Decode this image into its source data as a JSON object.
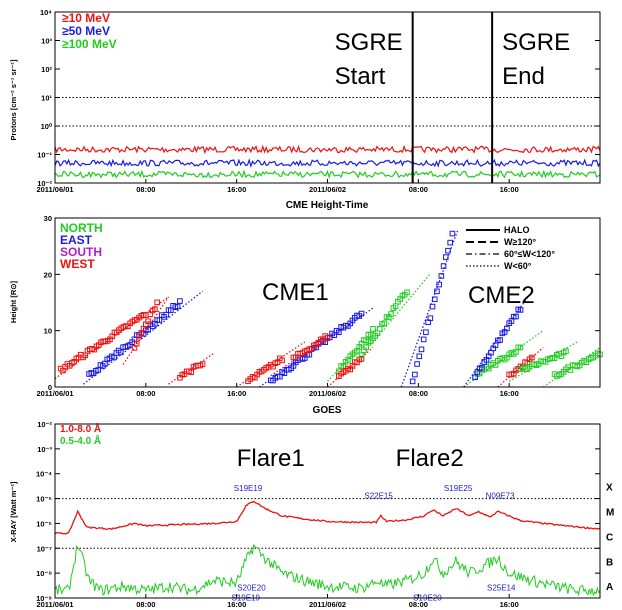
{
  "colors": {
    "red": "#ee1111",
    "blue": "#1a1ae6",
    "green": "#22cc22",
    "purple": "#b020c0",
    "annotation": "#2222cc"
  },
  "chart_data": [
    {
      "type": "line",
      "ylabel": "Protons [cm⁻² s⁻¹ sr⁻¹]",
      "yscale": "log",
      "ylim": [
        0.01,
        10000
      ],
      "x_ticks": [
        "2011/06/01",
        "08:00",
        "16:00",
        "2011/06/02",
        "08:00",
        "16:00"
      ],
      "y_ticks": [
        "10⁻²",
        "10⁻¹",
        "10⁰",
        "10¹",
        "10²",
        "10³",
        "10⁴"
      ],
      "legend": [
        "≥10 MeV",
        "≥50 MeV",
        "≥100 MeV"
      ],
      "reference_levels": [
        1,
        10
      ],
      "x_hours": [
        0,
        48
      ],
      "series": [
        {
          "name": "≥10 MeV",
          "level": 0.15
        },
        {
          "name": "≥50 MeV",
          "level": 0.05
        },
        {
          "name": "≥100 MeV",
          "level": 0.02
        }
      ],
      "markers": [
        {
          "label_1": "SGRE",
          "label_2": "Start",
          "hour": 31.5
        },
        {
          "label_1": "SGRE",
          "label_2": "End",
          "hour": 38.5
        }
      ]
    },
    {
      "type": "scatter",
      "title": "CME Height-Time",
      "ylabel": "Height [R⊙]",
      "ylim": [
        0,
        30
      ],
      "x_ticks": [
        "2011/06/01",
        "08:00",
        "16:00",
        "2011/06/02",
        "08:00",
        "16:00"
      ],
      "y_ticks": [
        "0",
        "10",
        "20",
        "30"
      ],
      "legend_directions": [
        "NORTH",
        "EAST",
        "SOUTH",
        "WEST"
      ],
      "legend_styles": [
        "HALO",
        "W≥120°",
        "60°≤W<120°",
        "W<60°"
      ],
      "labels": [
        "CME1",
        "CME2"
      ],
      "groups": [
        {
          "color": "red",
          "t0": 0.5,
          "t1": 8,
          "h0": 3,
          "h1": 13,
          "fit": [
            0,
            10,
            1.5,
            16
          ]
        },
        {
          "color": "blue",
          "t0": 3,
          "t1": 11,
          "h0": 2,
          "h1": 15,
          "fit": [
            2.5,
            13,
            0.5,
            17
          ]
        },
        {
          "color": "red",
          "t0": 7,
          "t1": 9,
          "h0": 7,
          "h1": 15,
          "fit": [
            6,
            10,
            4,
            16
          ]
        },
        {
          "color": "red",
          "t0": 11,
          "t1": 13,
          "h0": 2,
          "h1": 4,
          "fit": [
            10,
            14,
            0.5,
            6
          ]
        },
        {
          "color": "red",
          "t0": 17,
          "t1": 20,
          "h0": 1,
          "h1": 5,
          "fit": [
            16,
            22,
            0,
            8
          ]
        },
        {
          "color": "blue",
          "t0": 19,
          "t1": 27,
          "h0": 1,
          "h1": 13,
          "fit": [
            18,
            28,
            0,
            14
          ]
        },
        {
          "color": "red",
          "t0": 21,
          "t1": 24,
          "h0": 5,
          "h1": 9,
          "fit": [
            19,
            25,
            2,
            10
          ]
        },
        {
          "color": "green",
          "t0": 25,
          "t1": 28,
          "h0": 3,
          "h1": 10,
          "fit": [
            24,
            30,
            1,
            14
          ]
        },
        {
          "color": "red",
          "t0": 25,
          "t1": 27,
          "h0": 2,
          "h1": 5,
          "fit": [
            24,
            28,
            0,
            7
          ]
        },
        {
          "color": "green",
          "t0": 27,
          "t1": 31,
          "h0": 6,
          "h1": 17,
          "fit": [
            26,
            33,
            3,
            20
          ]
        },
        {
          "color": "blue",
          "t0": 31.5,
          "t1": 35,
          "h0": 1,
          "h1": 27,
          "fit": [
            30.5,
            35.5,
            0,
            28
          ]
        },
        {
          "color": "green",
          "t0": 37,
          "t1": 41,
          "h0": 2,
          "h1": 7,
          "fit": [
            36,
            43,
            0,
            10
          ]
        },
        {
          "color": "blue",
          "t0": 37,
          "t1": 41,
          "h0": 2,
          "h1": 14,
          "fit": [
            36,
            42,
            0,
            17
          ]
        },
        {
          "color": "red",
          "t0": 40,
          "t1": 42,
          "h0": 2,
          "h1": 5,
          "fit": [
            39,
            43,
            0,
            7
          ]
        },
        {
          "color": "green",
          "t0": 41,
          "t1": 45,
          "h0": 3,
          "h1": 6,
          "fit": [
            40,
            46,
            1,
            8
          ]
        },
        {
          "color": "green",
          "t0": 44,
          "t1": 48,
          "h0": 2,
          "h1": 6,
          "fit": [
            43,
            48,
            0,
            7
          ]
        }
      ]
    },
    {
      "type": "line",
      "title": "GOES",
      "ylabel": "X-RAY [Watt m⁻²]",
      "yscale": "log",
      "ylim": [
        1e-09,
        0.01
      ],
      "x_ticks": [
        "2011/06/01",
        "08:00",
        "16:00",
        "2011/06/02",
        "08:00",
        "16:00"
      ],
      "y_ticks": [
        "10⁻⁹",
        "10⁻⁸",
        "10⁻⁷",
        "10⁻⁶",
        "10⁻⁵",
        "10⁻⁴",
        "10⁻³",
        "10⁻²"
      ],
      "flare_classes": [
        "A",
        "B",
        "C",
        "M",
        "X"
      ],
      "legend": [
        "1.0-8.0 Å",
        "0.5-4.0 Å"
      ],
      "labels": [
        {
          "text": "Flare1",
          "hour": 19
        },
        {
          "text": "Flare2",
          "hour": 33
        }
      ],
      "annotations": [
        {
          "text": "S19E19",
          "hour": 17.0,
          "value": 2e-05
        },
        {
          "text": "S22E15",
          "hour": 28.5,
          "value": 1e-05
        },
        {
          "text": "S19E25",
          "hour": 35.5,
          "value": 2e-05
        },
        {
          "text": "N09E73",
          "hour": 39.2,
          "value": 1e-05
        },
        {
          "text": "S20E20",
          "hour": 17.3,
          "value": 2e-09
        },
        {
          "text": "S19E19",
          "hour": 16.8,
          "value": 8e-10
        },
        {
          "text": "S19E20",
          "hour": 32.8,
          "value": 8e-10
        },
        {
          "text": "S25E14",
          "hour": 39.3,
          "value": 2e-09
        }
      ],
      "series": [
        {
          "name": "1.0-8.0 Å",
          "points": [
            [
              0,
              4e-07
            ],
            [
              1.2,
              4e-07
            ],
            [
              2,
              3e-06
            ],
            [
              2.8,
              7e-07
            ],
            [
              5,
              6e-07
            ],
            [
              7,
              1e-06
            ],
            [
              8,
              8e-07
            ],
            [
              11,
              9e-07
            ],
            [
              14,
              1e-06
            ],
            [
              16,
              1.2e-06
            ],
            [
              16.8,
              5e-06
            ],
            [
              17.5,
              8e-06
            ],
            [
              18.5,
              4e-06
            ],
            [
              20,
              2e-06
            ],
            [
              22,
              1.5e-06
            ],
            [
              24,
              1.2e-06
            ],
            [
              27,
              1.1e-06
            ],
            [
              28.3,
              1.1e-06
            ],
            [
              28.7,
              2e-06
            ],
            [
              29.2,
              1.2e-06
            ],
            [
              31,
              1.4e-06
            ],
            [
              32.5,
              2e-06
            ],
            [
              33.3,
              3.5e-06
            ],
            [
              34.2,
              2e-06
            ],
            [
              35.3,
              4e-06
            ],
            [
              36.5,
              2e-06
            ],
            [
              37.3,
              3e-06
            ],
            [
              38.3,
              1.8e-06
            ],
            [
              39,
              3e-06
            ],
            [
              40,
              2e-06
            ],
            [
              41,
              1.3e-06
            ],
            [
              43,
              1e-06
            ],
            [
              45,
              8e-07
            ],
            [
              48,
              6e-07
            ]
          ]
        },
        {
          "name": "0.5-4.0 Å",
          "points": [
            [
              0,
              2e-09
            ],
            [
              1.2,
              2e-09
            ],
            [
              2,
              1.5e-07
            ],
            [
              3,
              5e-09
            ],
            [
              4,
              2e-09
            ],
            [
              6,
              3e-09
            ],
            [
              8,
              2e-09
            ],
            [
              10,
              3e-09
            ],
            [
              12,
              2e-09
            ],
            [
              14,
              5e-09
            ],
            [
              16,
              4e-09
            ],
            [
              16.8,
              3e-08
            ],
            [
              17.5,
              1.2e-07
            ],
            [
              18.5,
              4e-08
            ],
            [
              20,
              1e-08
            ],
            [
              22,
              5e-09
            ],
            [
              24,
              3e-09
            ],
            [
              27,
              2.5e-09
            ],
            [
              28.5,
              5e-09
            ],
            [
              29,
              3e-09
            ],
            [
              31,
              5e-09
            ],
            [
              32.5,
              1e-08
            ],
            [
              33.3,
              4e-08
            ],
            [
              34.2,
              1e-08
            ],
            [
              35.3,
              3e-08
            ],
            [
              36.5,
              1e-08
            ],
            [
              37.3,
              1.5e-08
            ],
            [
              39,
              4e-08
            ],
            [
              40,
              1e-08
            ],
            [
              42,
              5e-09
            ],
            [
              44,
              3e-09
            ],
            [
              46,
              2e-09
            ],
            [
              48,
              2e-09
            ]
          ]
        }
      ]
    }
  ]
}
